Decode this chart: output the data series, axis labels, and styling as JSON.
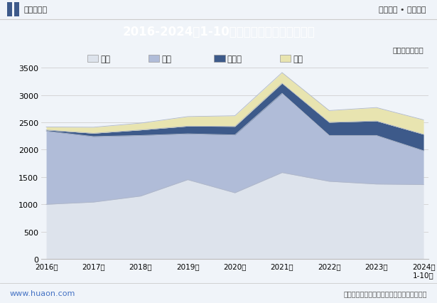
{
  "title": "2016-2024年1-10月湖北省各发电类型发电量",
  "unit_label": "单位：亿千瓦时",
  "header_left": "华经情报网",
  "header_right": "专业严谨 • 客观科学",
  "footer_left": "www.huaon.com",
  "footer_right": "数据来源：国家统计局，华经产业研究院整理",
  "years": [
    "2016年",
    "2017年",
    "2018年",
    "2019年",
    "2020年",
    "2021年",
    "2022年",
    "2023年",
    "2024年\n1-10月"
  ],
  "fire": [
    1000,
    1040,
    1150,
    1450,
    1210,
    1580,
    1420,
    1370,
    1360
  ],
  "water": [
    1340,
    1200,
    1110,
    840,
    1060,
    1450,
    840,
    890,
    620
  ],
  "solar": [
    20,
    60,
    100,
    140,
    155,
    185,
    240,
    265,
    300
  ],
  "wind": [
    55,
    110,
    125,
    175,
    195,
    195,
    215,
    245,
    265
  ],
  "fire_color": "#dde3ec",
  "water_color": "#b0bcd8",
  "solar_color": "#3d5a8a",
  "wind_color": "#e8e4b0",
  "ylim": [
    0,
    3500
  ],
  "yticks": [
    0,
    500,
    1000,
    1500,
    2000,
    2500,
    3000,
    3500
  ],
  "title_bg_color": "#3d5a8a",
  "title_text_color": "#ffffff",
  "bg_color": "#f0f4f9",
  "legend_labels": [
    "火力",
    "水力",
    "太阳能",
    "风力"
  ]
}
